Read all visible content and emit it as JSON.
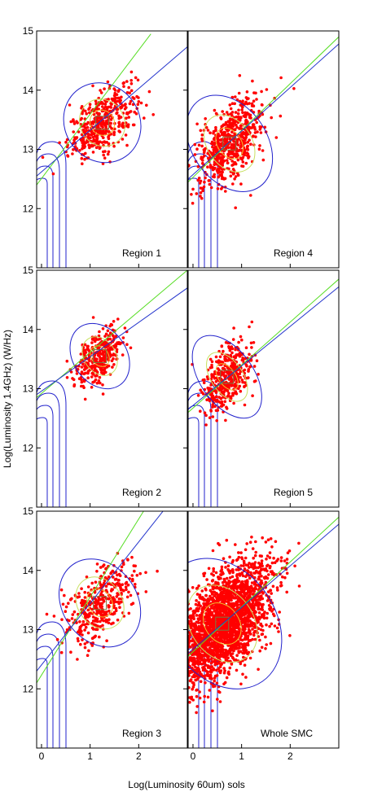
{
  "figure": {
    "ylabel": "Log(Luminosity 1.4GHz) (W/Hz)",
    "xlabel": "Log(Luminosity 60um) sols"
  },
  "chart_data": [
    {
      "type": "scatter",
      "label": "Region 1",
      "xlim": [
        -0.1,
        3
      ],
      "ylim": [
        11,
        15
      ],
      "xticks": [],
      "yticks": [
        12,
        13,
        14,
        15
      ],
      "center": [
        1.25,
        13.45
      ],
      "spread": [
        0.35,
        0.35
      ],
      "n": 420,
      "fit_green": {
        "x": [
          -0.1,
          2.25
        ],
        "y": [
          12.4,
          14.95
        ]
      },
      "fit_blue": {
        "x": [
          -0.1,
          3
        ],
        "y": [
          12.55,
          14.73
        ]
      }
    },
    {
      "type": "scatter",
      "label": "Region 4",
      "xlim": [
        -0.1,
        3
      ],
      "ylim": [
        11,
        15
      ],
      "xticks": [],
      "yticks": [],
      "center": [
        0.75,
        13.1
      ],
      "spread": [
        0.35,
        0.45
      ],
      "n": 600,
      "fit_green": {
        "x": [
          -0.1,
          3
        ],
        "y": [
          12.45,
          14.9
        ]
      },
      "fit_blue": {
        "x": [
          -0.1,
          3
        ],
        "y": [
          12.5,
          14.78
        ]
      }
    },
    {
      "type": "scatter",
      "label": "Region 2",
      "xlim": [
        -0.1,
        3
      ],
      "ylim": [
        11,
        15
      ],
      "xticks": [],
      "yticks": [
        12,
        13,
        14,
        15
      ],
      "center": [
        1.2,
        13.55
      ],
      "spread": [
        0.25,
        0.3
      ],
      "n": 320,
      "fit_green": {
        "x": [
          -0.1,
          3
        ],
        "y": [
          12.85,
          15.0
        ]
      },
      "fit_blue": {
        "x": [
          -0.1,
          3
        ],
        "y": [
          12.9,
          14.7
        ]
      }
    },
    {
      "type": "scatter",
      "label": "Region 5",
      "xlim": [
        -0.1,
        3
      ],
      "ylim": [
        11,
        15
      ],
      "xticks": [],
      "yticks": [],
      "center": [
        0.7,
        13.2
      ],
      "spread": [
        0.25,
        0.4
      ],
      "n": 420,
      "fit_green": {
        "x": [
          -0.1,
          3
        ],
        "y": [
          12.6,
          14.85
        ]
      },
      "fit_blue": {
        "x": [
          -0.1,
          3
        ],
        "y": [
          12.65,
          14.72
        ]
      }
    },
    {
      "type": "scatter",
      "label": "Region 3",
      "xlim": [
        -0.1,
        3
      ],
      "ylim": [
        11,
        15
      ],
      "xticks": [
        0,
        1,
        2
      ],
      "yticks": [
        12,
        13,
        14,
        15
      ],
      "center": [
        1.2,
        13.45
      ],
      "spread": [
        0.35,
        0.4
      ],
      "n": 380,
      "fit_green": {
        "x": [
          -0.1,
          2.1
        ],
        "y": [
          12.1,
          15.0
        ]
      },
      "fit_blue": {
        "x": [
          -0.1,
          2.5
        ],
        "y": [
          12.3,
          15.0
        ]
      }
    },
    {
      "type": "scatter",
      "label": "Whole SMC",
      "xlim": [
        -0.1,
        3
      ],
      "ylim": [
        11,
        15
      ],
      "xticks": [
        0,
        1,
        2
      ],
      "yticks": [],
      "center": [
        0.6,
        13.1
      ],
      "spread": [
        0.5,
        0.6
      ],
      "n": 2600,
      "fit_green": {
        "x": [
          -0.1,
          3
        ],
        "y": [
          12.55,
          14.9
        ]
      },
      "fit_blue": {
        "x": [
          -0.1,
          3
        ],
        "y": [
          12.6,
          14.78
        ]
      }
    }
  ]
}
